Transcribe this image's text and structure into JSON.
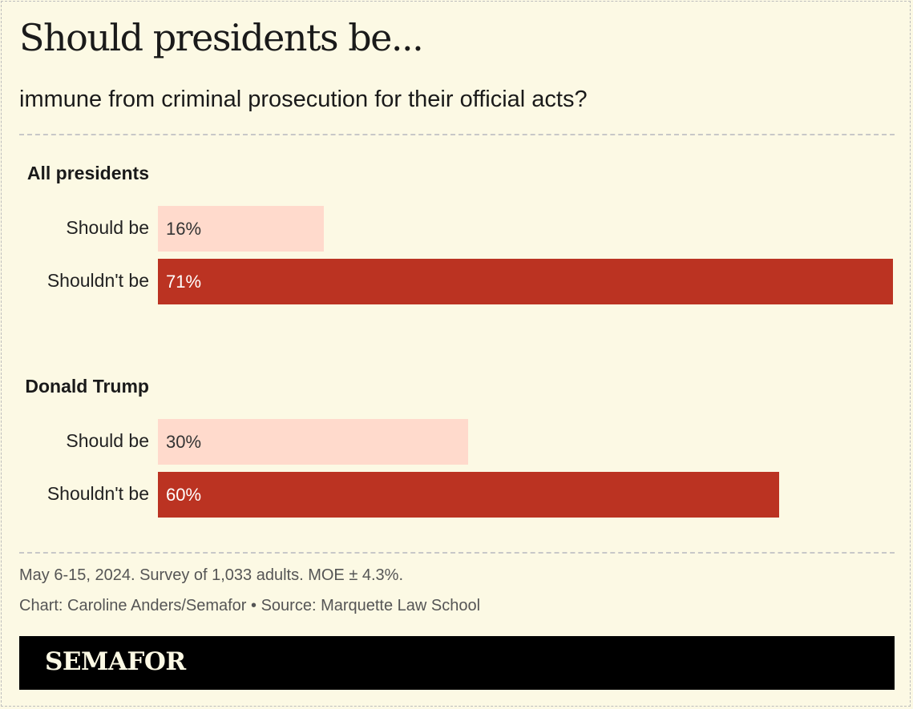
{
  "colors": {
    "background": "#fcf9e4",
    "should_be": "#ffdacc",
    "shouldnt_be": "#bb3322",
    "brand_bar": "#000000"
  },
  "footer": {
    "note": "May 6-15, 2024. Survey of 1,033 adults. MOE ± 4.3%.",
    "credit": "Chart: Caroline Anders/Semafor • Source: Marquette Law School",
    "brand": "SEMAFOR"
  },
  "chart_data": {
    "type": "bar",
    "orientation": "horizontal",
    "title": "Should presidents be...",
    "subtitle": "immune from criminal prosecution for their official acts?",
    "unit": "%",
    "xlim": [
      0,
      71
    ],
    "groups": [
      {
        "name": "All presidents",
        "bars": [
          {
            "label": "Should be",
            "value": 16,
            "display": "16%",
            "series": "should_be"
          },
          {
            "label": "Shouldn't be",
            "value": 71,
            "display": "71%",
            "series": "shouldnt_be"
          }
        ]
      },
      {
        "name": "Donald Trump",
        "bars": [
          {
            "label": "Should be",
            "value": 30,
            "display": "30%",
            "series": "should_be"
          },
          {
            "label": "Shouldn't be",
            "value": 60,
            "display": "60%",
            "series": "shouldnt_be"
          }
        ]
      }
    ]
  }
}
